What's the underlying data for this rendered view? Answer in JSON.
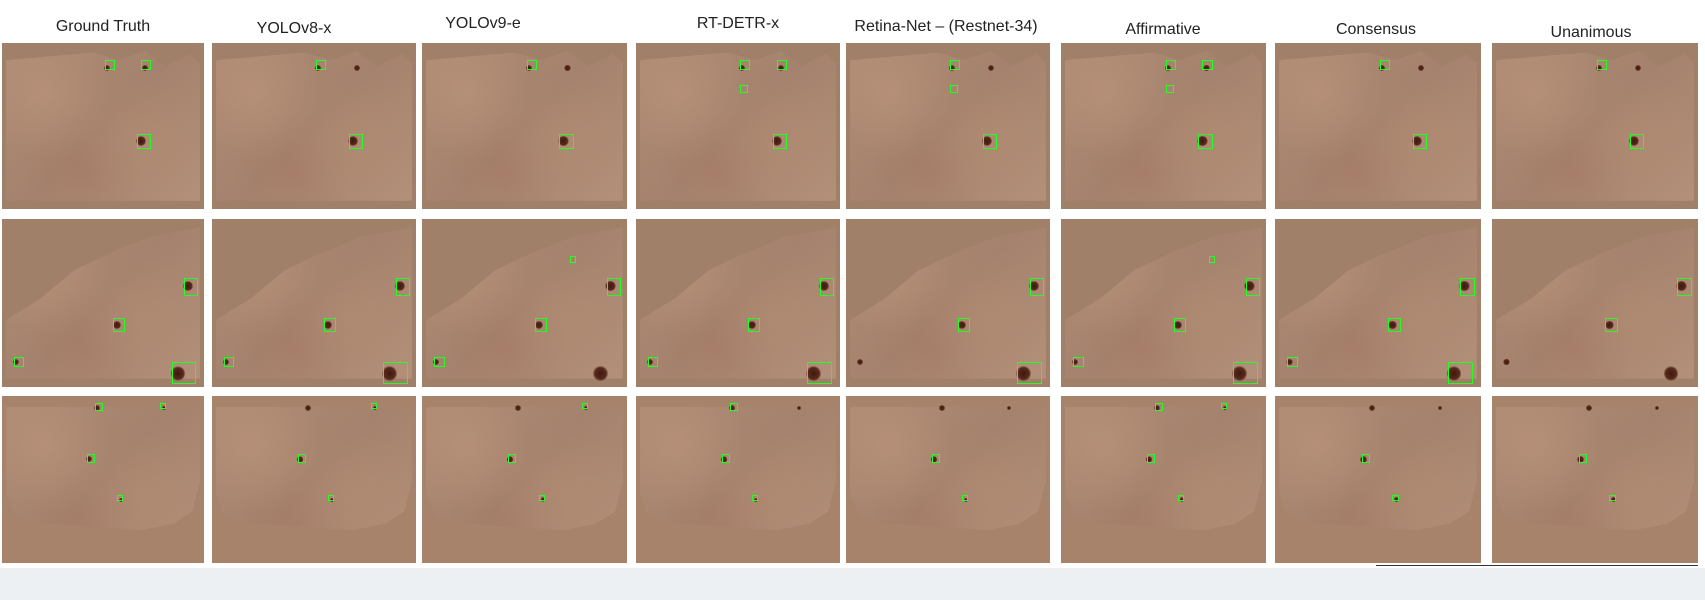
{
  "columns": [
    "Ground Truth",
    "YOLOv8-x",
    "YOLOv9-e",
    "RT-DETR-x",
    "Retina-Net – (Restnet-34)",
    "Affirmative",
    "Consensus",
    "Unanimous"
  ],
  "colors": {
    "detection_box": "#22ff22",
    "skin_background": "#a08069",
    "footer_band": "#edf0f3"
  }
}
